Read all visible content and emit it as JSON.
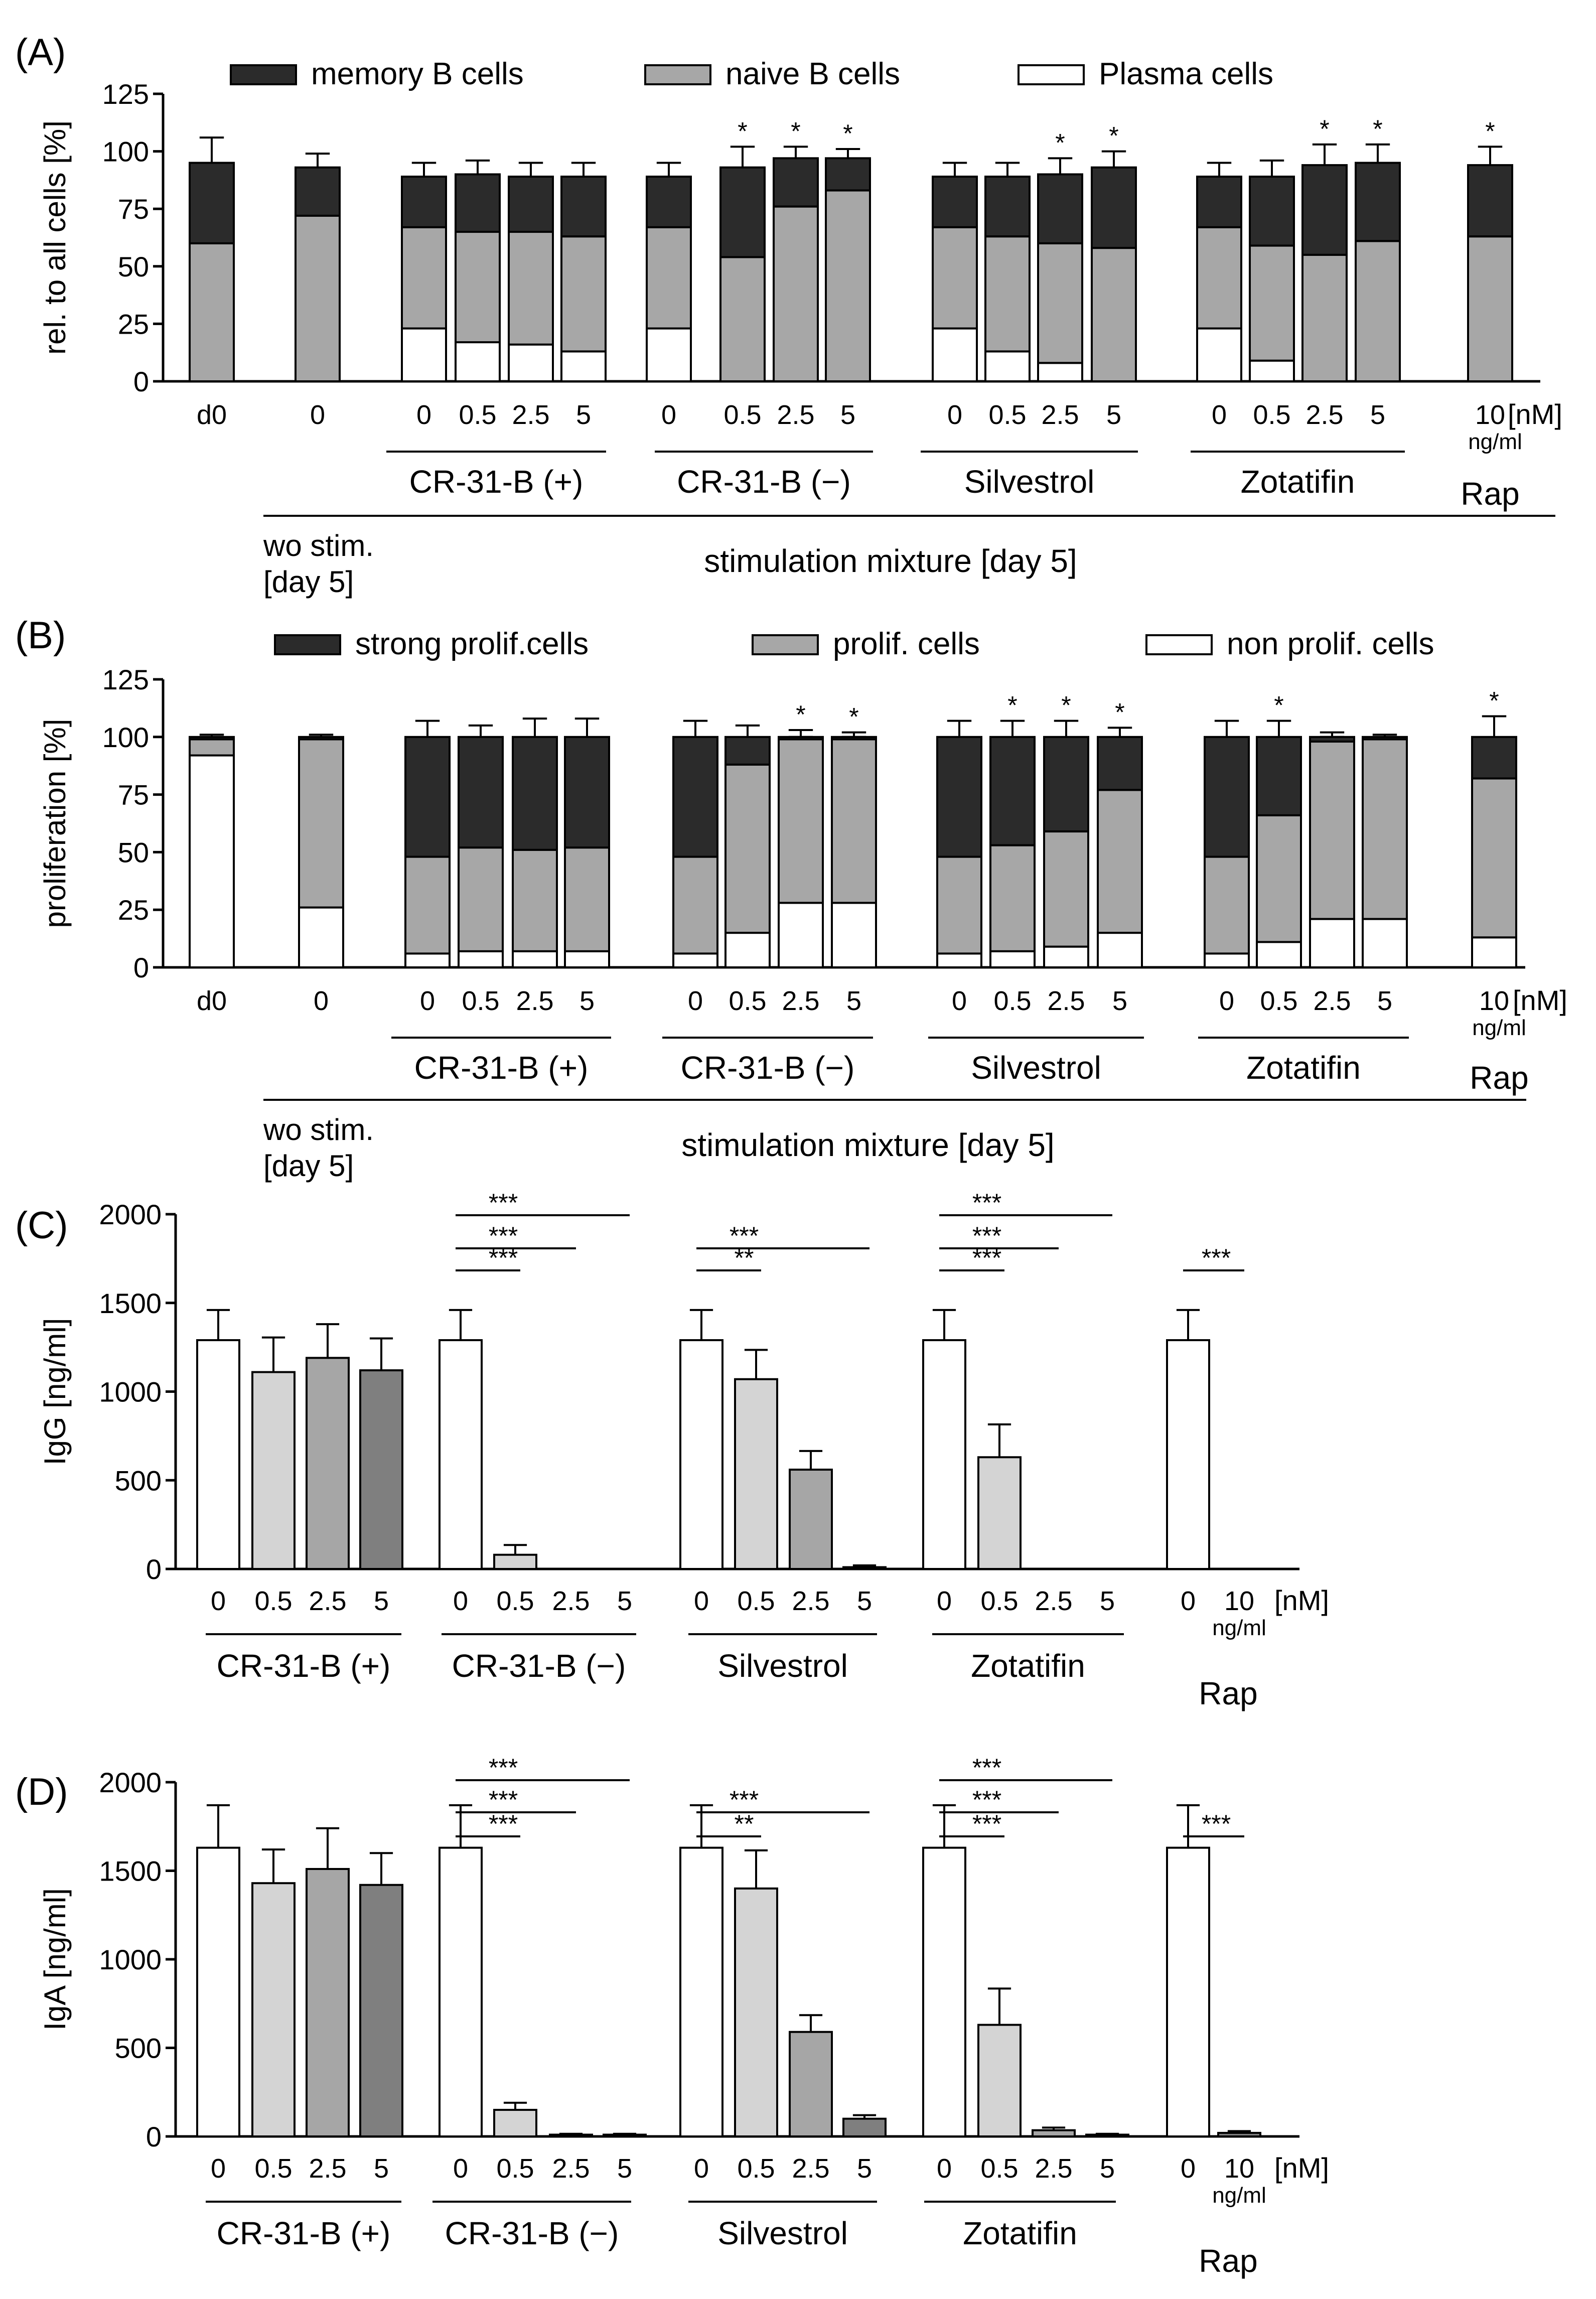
{
  "colors": {
    "black": "#2b2b2b",
    "gray": "#a7a7a7",
    "white": "#ffffff",
    "light": "#d4d4d4",
    "mid": "#a6a6a6",
    "dark": "#7f7f7f"
  },
  "chart_data": [
    {
      "panel": "(A)",
      "type": "bar",
      "stacked": true,
      "ylabel": "rel. to all cells [%]",
      "ylim": [
        0,
        125
      ],
      "yticks": [
        "0",
        "25",
        "50",
        "75",
        "100",
        "125"
      ],
      "unit_label": "[nM]",
      "legend": [
        "memory B cells",
        "naive B cells",
        "Plasma cells"
      ],
      "categories": [
        "d0",
        "0",
        "0",
        "0.5",
        "2.5",
        "5",
        "0",
        "0.5",
        "2.5",
        "5",
        "0",
        "0.5",
        "2.5",
        "5",
        "0",
        "0.5",
        "2.5",
        "5",
        "10"
      ],
      "rap_unit": "ng/ml",
      "groups": [
        "CR-31-B (+)",
        "CR-31-B (−)",
        "Silvestrol",
        "Zotatifin"
      ],
      "rap_label": "Rap",
      "wo_label": [
        "wo stim.",
        "[day 5]"
      ],
      "stim_label": "stimulation mixture [day 5]",
      "series": [
        {
          "name": "Plasma cells",
          "values": [
            0,
            0,
            23,
            17,
            16,
            13,
            23,
            0,
            0,
            0,
            23,
            13,
            8,
            0,
            23,
            9,
            0,
            0,
            0
          ],
          "err": [
            1,
            1,
            3,
            1,
            2,
            2,
            3,
            1,
            0,
            0,
            3,
            1,
            1,
            1,
            3,
            4,
            1,
            0,
            1
          ]
        },
        {
          "name": "naive B cells",
          "values": [
            60,
            72,
            44,
            48,
            49,
            50,
            44,
            54,
            76,
            83,
            44,
            50,
            52,
            58,
            44,
            50,
            55,
            61,
            63
          ],
          "err": [
            11,
            3,
            5,
            6,
            7,
            8,
            5,
            10,
            6,
            5,
            5,
            7,
            7,
            9,
            5,
            8,
            10,
            8,
            10
          ]
        },
        {
          "name": "memory B cells",
          "values": [
            35,
            21,
            22,
            25,
            24,
            26,
            22,
            39,
            21,
            14,
            22,
            26,
            30,
            35,
            22,
            30,
            39,
            34,
            31
          ],
          "err": [
            11,
            6,
            6,
            6,
            6,
            6,
            6,
            9,
            5,
            4,
            6,
            6,
            7,
            7,
            6,
            7,
            9,
            8,
            8
          ]
        }
      ],
      "significance": [
        "",
        "",
        "",
        "",
        "",
        "",
        "",
        "*",
        "*",
        "*",
        "",
        "",
        "*",
        "*",
        "",
        "",
        "*",
        "*",
        "*"
      ]
    },
    {
      "panel": "(B)",
      "type": "bar",
      "stacked": true,
      "ylabel": "proliferation [%]",
      "ylim": [
        0,
        125
      ],
      "yticks": [
        "0",
        "25",
        "50",
        "75",
        "100",
        "125"
      ],
      "unit_label": "[nM]",
      "legend": [
        "strong prolif.cells",
        "prolif. cells",
        "non prolif. cells"
      ],
      "categories": [
        "d0",
        "0",
        "0",
        "0.5",
        "2.5",
        "5",
        "0",
        "0.5",
        "2.5",
        "5",
        "0",
        "0.5",
        "2.5",
        "5",
        "0",
        "0.5",
        "2.5",
        "5",
        "10"
      ],
      "rap_unit": "ng/ml",
      "groups": [
        "CR-31-B (+)",
        "CR-31-B (−)",
        "Silvestrol",
        "Zotatifin"
      ],
      "rap_label": "Rap",
      "wo_label": [
        "wo stim.",
        "[day 5]"
      ],
      "stim_label": "stimulation mixture [day 5]",
      "series": [
        {
          "name": "non prolif. cells",
          "values": [
            92,
            26,
            6,
            7,
            7,
            7,
            6,
            15,
            28,
            28,
            6,
            7,
            9,
            15,
            6,
            11,
            21,
            21,
            13
          ],
          "err": [
            1,
            1,
            1,
            1,
            1,
            1,
            1,
            4,
            4,
            3,
            1,
            1,
            1,
            1,
            1,
            2,
            2,
            2,
            2
          ]
        },
        {
          "name": "prolif. cells",
          "values": [
            7,
            73,
            42,
            45,
            44,
            45,
            42,
            73,
            71,
            71,
            42,
            46,
            50,
            62,
            42,
            55,
            77,
            78,
            69
          ],
          "err": [
            1,
            1,
            7,
            5,
            7,
            7,
            7,
            1,
            1,
            1,
            7,
            6,
            7,
            5,
            7,
            8,
            2,
            1,
            8
          ]
        },
        {
          "name": "strong prolif.cells",
          "values": [
            1,
            1,
            52,
            48,
            49,
            48,
            52,
            12,
            1,
            1,
            52,
            47,
            41,
            23,
            52,
            34,
            2,
            1,
            18
          ],
          "err": [
            1,
            1,
            7,
            5,
            8,
            8,
            7,
            5,
            3,
            2,
            7,
            7,
            7,
            4,
            7,
            7,
            2,
            1,
            9
          ]
        }
      ],
      "significance": [
        "",
        "",
        "",
        "",
        "",
        "",
        "",
        "",
        "*",
        "*",
        "",
        "*",
        "*",
        "*",
        "",
        "*",
        "",
        "",
        "*"
      ]
    },
    {
      "panel": "(C)",
      "type": "bar",
      "ylabel": "IgG [ng/ml]",
      "ylim": [
        0,
        2000
      ],
      "yticks": [
        "0",
        "500",
        "1000",
        "1500",
        "2000"
      ],
      "unit_label": "[nM]",
      "categories": [
        "0",
        "0.5",
        "2.5",
        "5",
        "0",
        "0.5",
        "2.5",
        "5",
        "0",
        "0.5",
        "2.5",
        "5",
        "0",
        "0.5",
        "2.5",
        "5",
        "0",
        "10"
      ],
      "rap_unit": "ng/ml",
      "groups": [
        "CR-31-B (+)",
        "CR-31-B (−)",
        "Silvestrol",
        "Zotatifin"
      ],
      "rap_label": "Rap",
      "values": [
        1290,
        1110,
        1190,
        1120,
        1290,
        80,
        0,
        0,
        1290,
        1070,
        560,
        10,
        1290,
        630,
        0,
        0,
        1290,
        0
      ],
      "err": [
        170,
        195,
        190,
        180,
        170,
        55,
        0,
        0,
        170,
        165,
        105,
        10,
        170,
        185,
        0,
        0,
        170,
        0
      ],
      "comparisons": [
        {
          "from": 4,
          "to": 5,
          "label": "***"
        },
        {
          "from": 4,
          "to": 6,
          "label": "***"
        },
        {
          "from": 4,
          "to": 7,
          "label": "***"
        },
        {
          "from": 8,
          "to": 9,
          "label": "**"
        },
        {
          "from": 8,
          "to": 11,
          "label": "***"
        },
        {
          "from": 12,
          "to": 13,
          "label": "***"
        },
        {
          "from": 12,
          "to": 14,
          "label": "***"
        },
        {
          "from": 12,
          "to": 15,
          "label": "***"
        },
        {
          "from": 16,
          "to": 17,
          "label": "***"
        }
      ]
    },
    {
      "panel": "(D)",
      "type": "bar",
      "ylabel": "IgA [ng/ml]",
      "ylim": [
        0,
        2000
      ],
      "yticks": [
        "0",
        "500",
        "1000",
        "1500",
        "2000"
      ],
      "unit_label": "[nM]",
      "categories": [
        "0",
        "0.5",
        "2.5",
        "5",
        "0",
        "0.5",
        "2.5",
        "5",
        "0",
        "0.5",
        "2.5",
        "5",
        "0",
        "0.5",
        "2.5",
        "5",
        "0",
        "10"
      ],
      "rap_unit": "ng/ml",
      "groups": [
        "CR-31-B (+)",
        "CR-31-B (−)",
        "Silvestrol",
        "Zotatifin"
      ],
      "rap_label": "Rap",
      "values": [
        1630,
        1430,
        1510,
        1420,
        1630,
        150,
        10,
        10,
        1630,
        1400,
        590,
        100,
        1630,
        630,
        35,
        10,
        1630,
        20
      ],
      "err": [
        240,
        190,
        230,
        180,
        240,
        40,
        5,
        5,
        240,
        215,
        95,
        20,
        240,
        205,
        15,
        5,
        240,
        10
      ],
      "comparisons": [
        {
          "from": 4,
          "to": 5,
          "label": "***"
        },
        {
          "from": 4,
          "to": 6,
          "label": "***"
        },
        {
          "from": 4,
          "to": 7,
          "label": "***"
        },
        {
          "from": 8,
          "to": 9,
          "label": "**"
        },
        {
          "from": 8,
          "to": 11,
          "label": "***"
        },
        {
          "from": 12,
          "to": 13,
          "label": "***"
        },
        {
          "from": 12,
          "to": 14,
          "label": "***"
        },
        {
          "from": 12,
          "to": 15,
          "label": "***"
        },
        {
          "from": 16,
          "to": 17,
          "label": "***"
        }
      ]
    }
  ]
}
